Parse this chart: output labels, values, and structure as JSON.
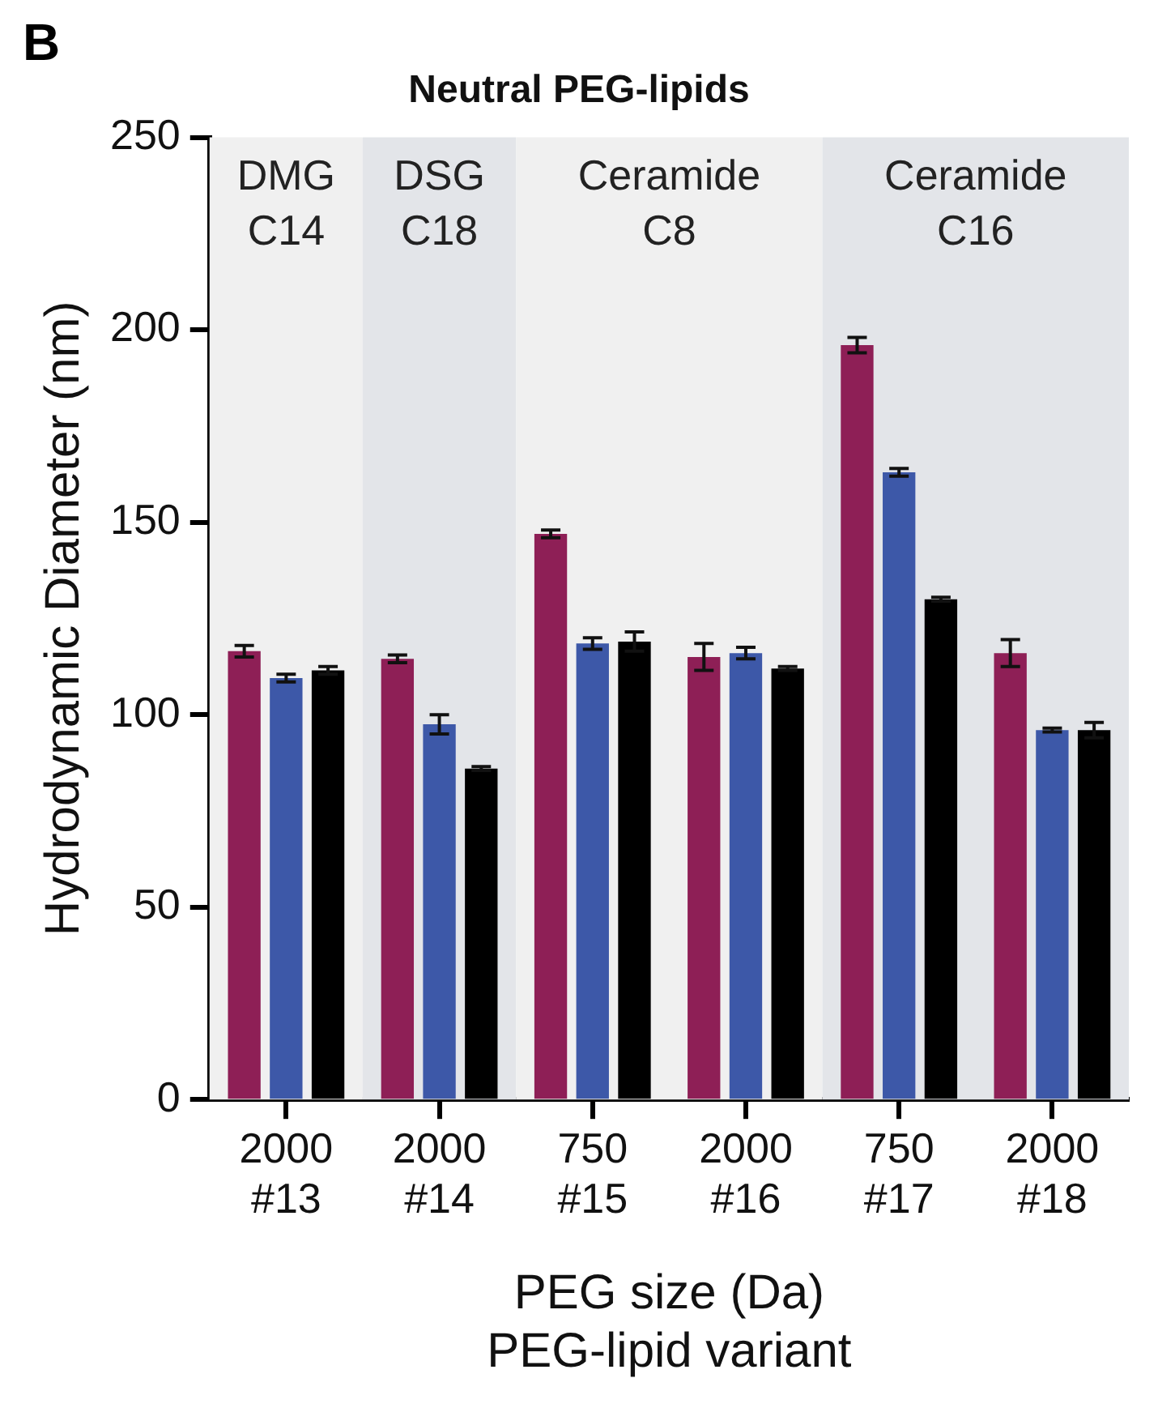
{
  "chart_data": {
    "type": "bar",
    "title": "Neutral PEG-lipids",
    "annotations": [
      "B"
    ],
    "categories": [
      "2000\n#13",
      "2000\n#14",
      "750\n#15",
      "2000\n#16",
      "750\n#17",
      "2000\n#18"
    ],
    "series": [
      {
        "color": "#8e1f56",
        "values": [
          116.5,
          114.5,
          147,
          115,
          196,
          116
        ],
        "errors": [
          1.5,
          1,
          1,
          3.5,
          2,
          3.5
        ]
      },
      {
        "color": "#3d58a8",
        "values": [
          109.5,
          97.5,
          118.5,
          116,
          163,
          96
        ],
        "errors": [
          1,
          2.5,
          1.5,
          1.5,
          1,
          0.5
        ]
      },
      {
        "color": "#000000",
        "values": [
          111.5,
          86,
          119,
          112,
          130,
          96
        ],
        "errors": [
          1,
          0.5,
          2.5,
          0.5,
          0.5,
          2
        ]
      }
    ],
    "xlabel": "PEG size (Da)\nPEG-lipid variant",
    "ylabel": "Hydrodynamic Diameter (nm)",
    "ylim": [
      0,
      250
    ],
    "yticks": [
      0,
      50,
      100,
      150,
      200,
      250
    ],
    "grid": false,
    "legend": false,
    "bands": [
      {
        "axis": "x",
        "from": "2000\n#13",
        "to": "2000\n#13",
        "label": "DMG\nC14",
        "color": "#f0f0f0"
      },
      {
        "axis": "x",
        "from": "2000\n#14",
        "to": "2000\n#14",
        "label": "DSG\nC18",
        "color": "#e3e5e9"
      },
      {
        "axis": "x",
        "from": "750\n#15",
        "to": "2000\n#16",
        "label": "Ceramide\nC8",
        "color": "#f0f0f0"
      },
      {
        "axis": "x",
        "from": "750\n#17",
        "to": "2000\n#18",
        "label": "Ceramide\nC16",
        "color": "#e3e5e9"
      }
    ]
  }
}
